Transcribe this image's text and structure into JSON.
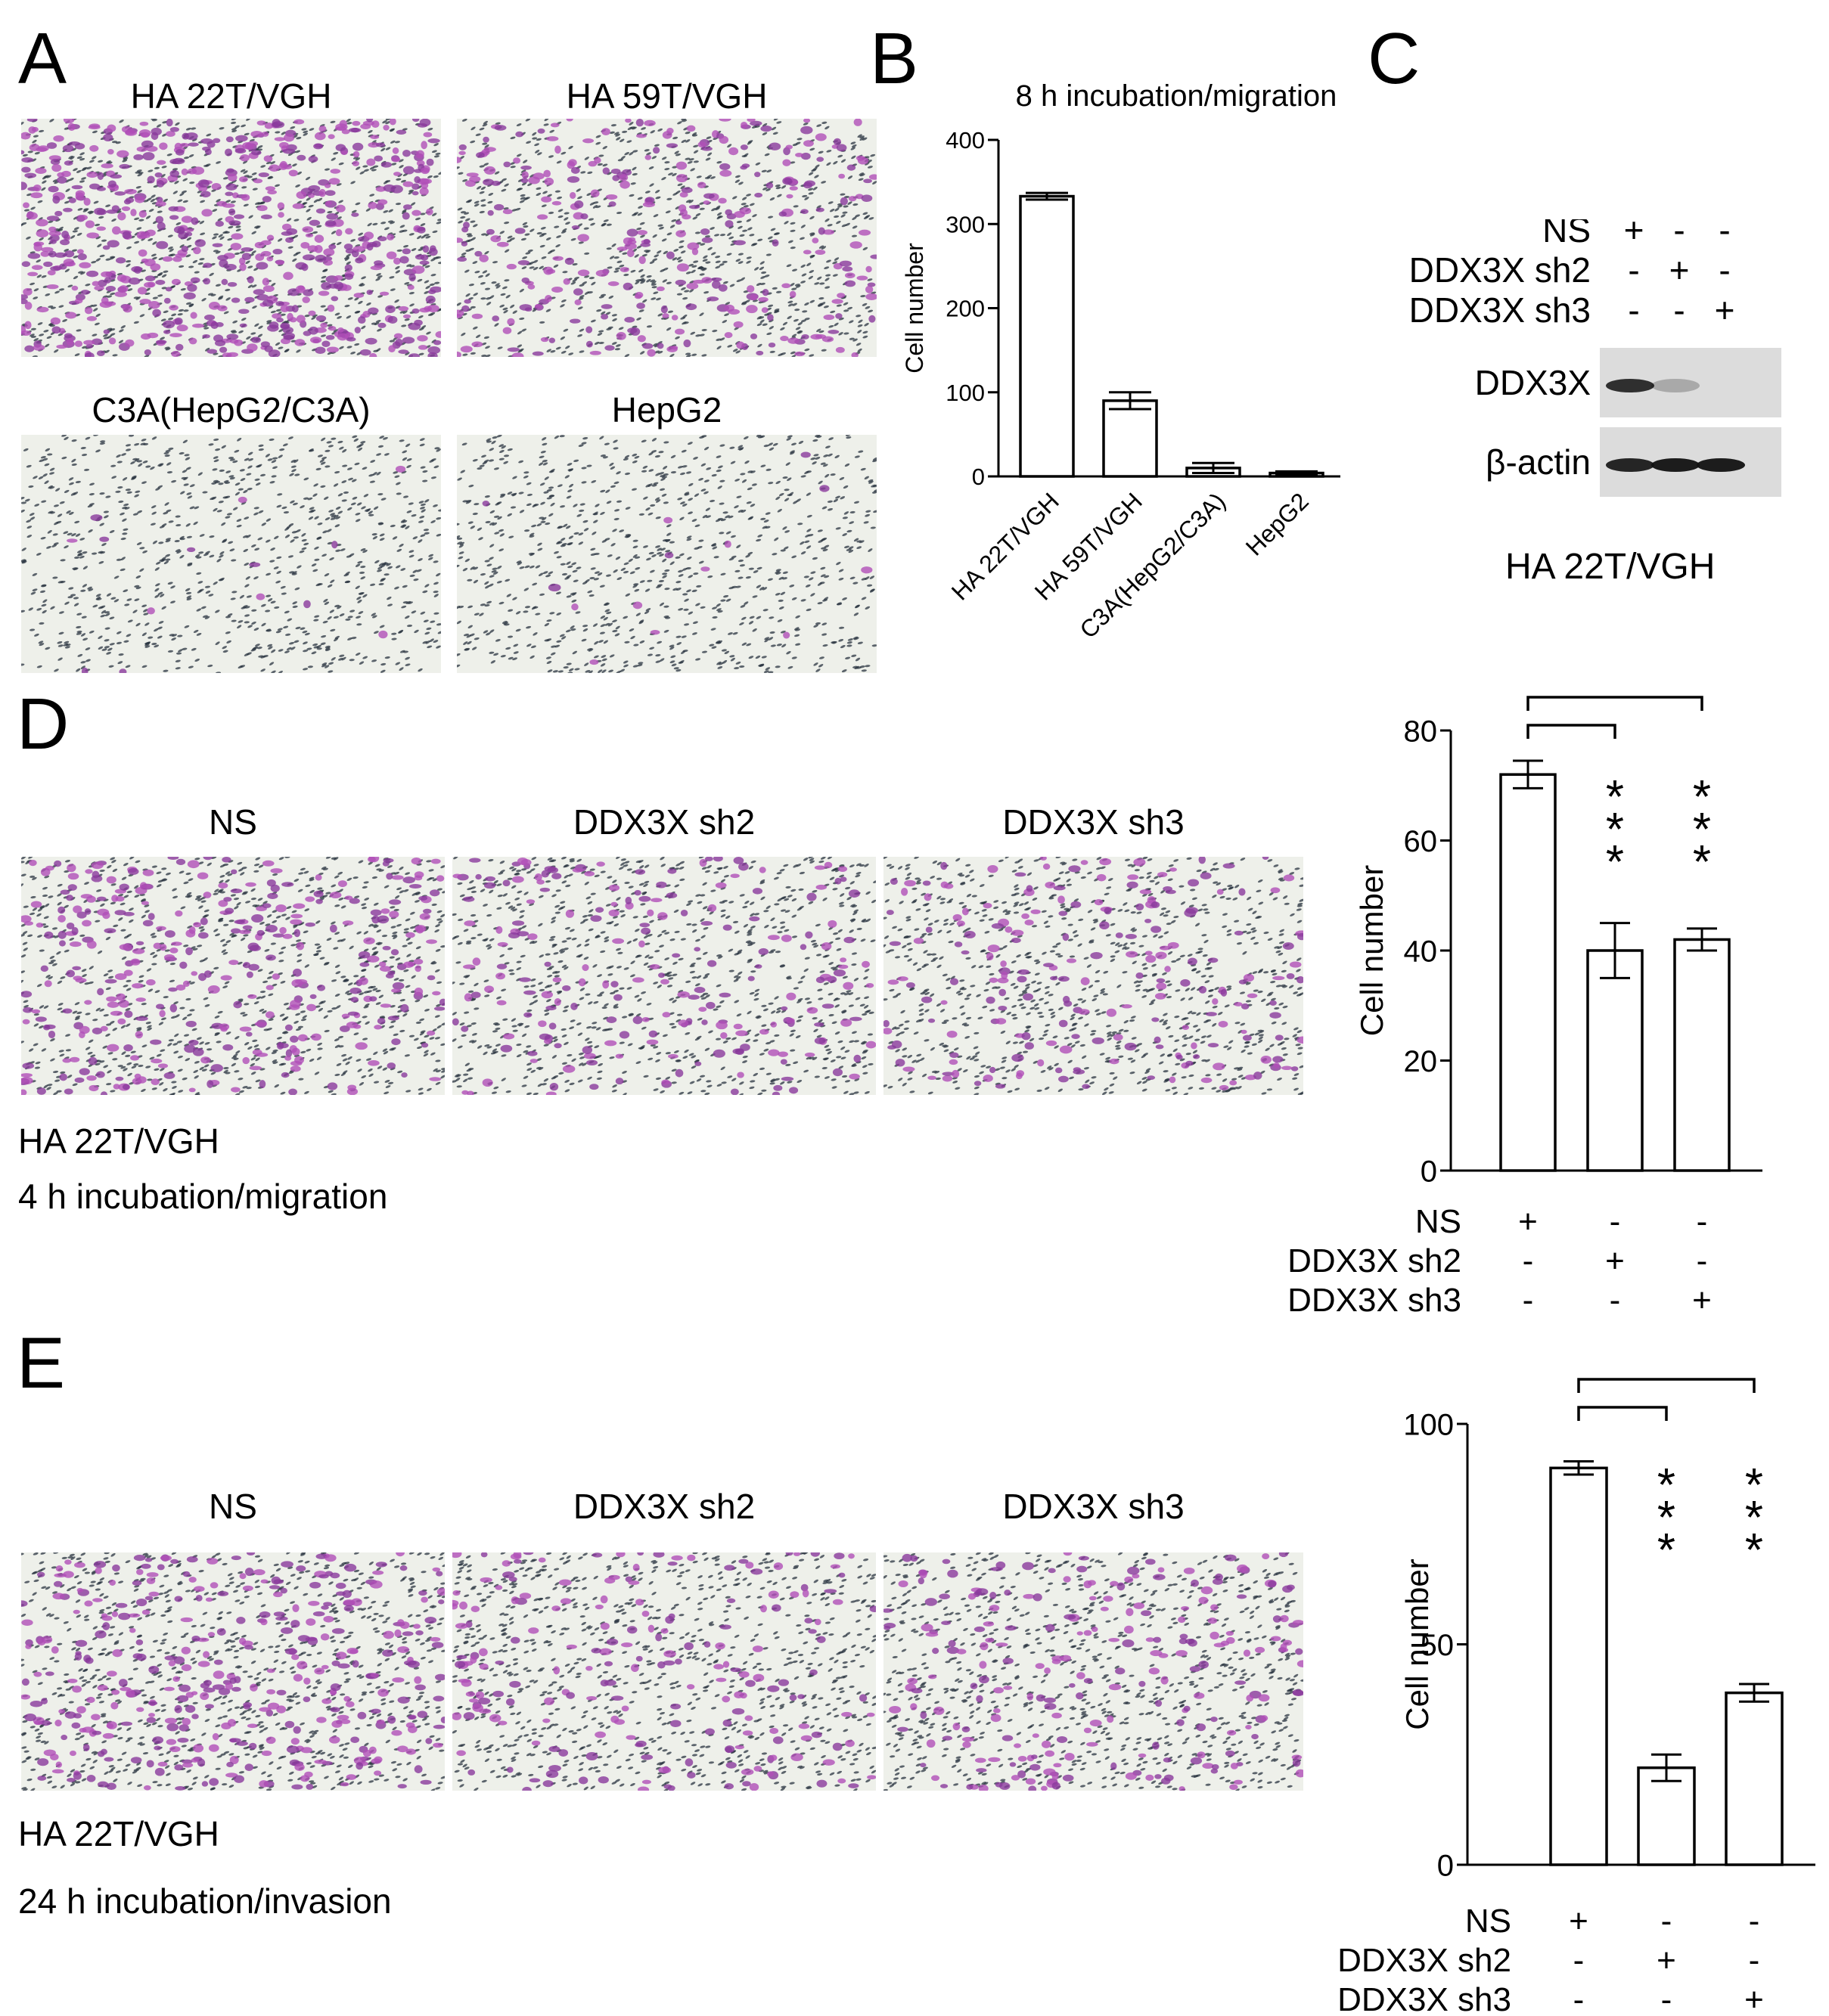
{
  "panels": {
    "A": {
      "letter": "A",
      "images": [
        {
          "title": "HA 22T/VGH",
          "density": 0.95
        },
        {
          "title": "HA 59T/VGH",
          "density": 0.45
        },
        {
          "title": "C3A(HepG2/C3A)",
          "density": 0.02
        },
        {
          "title": "HepG2",
          "density": 0.02
        }
      ]
    },
    "B": {
      "letter": "B"
    },
    "C": {
      "letter": "C",
      "conditions": [
        "NS",
        "DDX3X sh2",
        "DDX3X sh3"
      ],
      "signs": [
        [
          "+",
          "-",
          "-"
        ],
        [
          "-",
          "+",
          "-"
        ],
        [
          "-",
          "-",
          "+"
        ]
      ],
      "bands": [
        {
          "label": "DDX3X",
          "intensities": [
            0.85,
            0.25,
            0.03
          ]
        },
        {
          "label": "β-actin",
          "intensities": [
            0.9,
            0.95,
            0.95
          ]
        }
      ],
      "cell_line": "HA 22T/VGH"
    },
    "D": {
      "letter": "D",
      "images": [
        {
          "title": "NS",
          "density": 0.5
        },
        {
          "title": "DDX3X sh2",
          "density": 0.3
        },
        {
          "title": "DDX3X sh3",
          "density": 0.3
        }
      ],
      "caption_line1": "HA 22T/VGH",
      "caption_line2": "4 h incubation/migration",
      "conditions": [
        "NS",
        "DDX3X sh2",
        "DDX3X sh3"
      ],
      "signs": [
        [
          "+",
          "-",
          "-"
        ],
        [
          "-",
          "+",
          "-"
        ],
        [
          "-",
          "-",
          "+"
        ]
      ],
      "significance": [
        "",
        "***",
        "***"
      ]
    },
    "E": {
      "letter": "E",
      "images": [
        {
          "title": "NS",
          "density": 0.55
        },
        {
          "title": "DDX3X sh2",
          "density": 0.3
        },
        {
          "title": "DDX3X sh3",
          "density": 0.35
        }
      ],
      "caption_line1": "HA 22T/VGH",
      "caption_line2": "24 h incubation/invasion",
      "conditions": [
        "NS",
        "DDX3X sh2",
        "DDX3X sh3"
      ],
      "signs": [
        [
          "+",
          "-",
          "-"
        ],
        [
          "-",
          "+",
          "-"
        ],
        [
          "-",
          "-",
          "+"
        ]
      ],
      "significance": [
        "",
        "***",
        "***"
      ]
    }
  },
  "chart_data": [
    {
      "id": "B",
      "type": "bar",
      "title": "8 h incubation/migration",
      "ylabel": "Cell number",
      "xlabel": "",
      "categories": [
        "HA 22T/VGH",
        "HA 59T/VGH",
        "C3A(HepG2/C3A)",
        "HepG2"
      ],
      "values": [
        333,
        90,
        10,
        4
      ],
      "errors": [
        4,
        10,
        6,
        2
      ],
      "ylim": [
        0,
        400
      ],
      "yticks": [
        0,
        100,
        200,
        300,
        400
      ]
    },
    {
      "id": "D",
      "type": "bar",
      "title": "",
      "ylabel": "Cell number",
      "xlabel": "",
      "categories": [
        "NS",
        "DDX3X sh2",
        "DDX3X sh3"
      ],
      "values": [
        72,
        40,
        42
      ],
      "errors": [
        2.5,
        5,
        2
      ],
      "ylim": [
        0,
        80
      ],
      "yticks": [
        0,
        20,
        40,
        60,
        80
      ]
    },
    {
      "id": "E",
      "type": "bar",
      "title": "",
      "ylabel": "Cell number",
      "xlabel": "",
      "categories": [
        "NS",
        "DDX3X sh2",
        "DDX3X sh3"
      ],
      "values": [
        90,
        22,
        39
      ],
      "errors": [
        1.5,
        3,
        2
      ],
      "ylim": [
        0,
        100
      ],
      "yticks": [
        0,
        50,
        100
      ]
    }
  ],
  "colors": {
    "purple": "#8a3a9c",
    "magenta": "#b04fb8",
    "nucleus": "#2a3440",
    "background": "#eef0ea",
    "bar_fill": "#ffffff",
    "ink": "#000000"
  }
}
